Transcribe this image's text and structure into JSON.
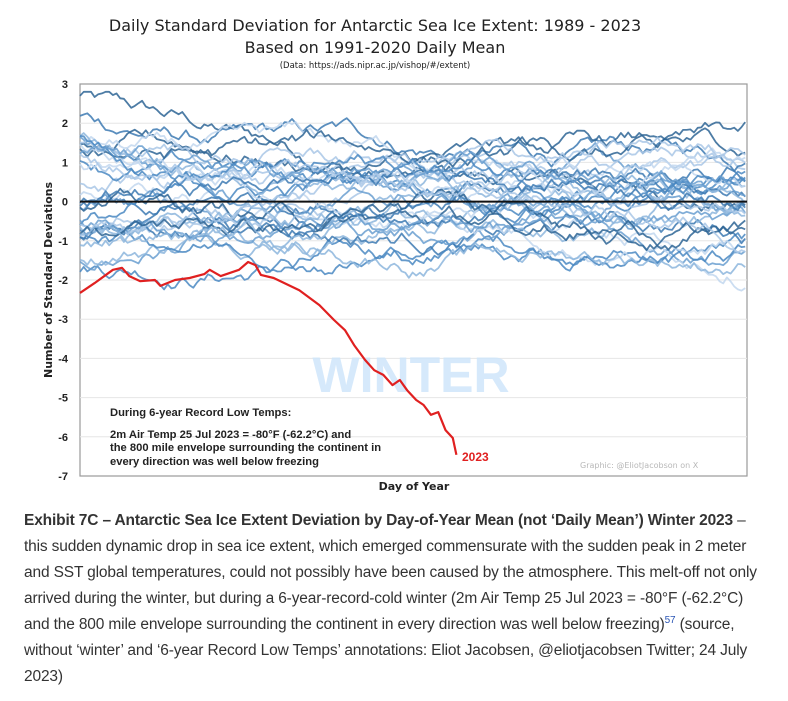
{
  "chart_data": {
    "type": "line",
    "title": "Daily Standard Deviation for Antarctic Sea Ice Extent: 1989 - 2023",
    "subtitle": "Based on 1991-2020 Daily Mean",
    "source_note": "(Data: https://ads.nipr.ac.jp/vishop/#/extent)",
    "xlabel": "Day of Year",
    "ylabel": "Number of Standard Deviations",
    "xlim": [
      1,
      366
    ],
    "ylim": [
      -7,
      3
    ],
    "yticks": [
      "3",
      "2",
      "1",
      "0",
      "-1",
      "-2",
      "-3",
      "-4",
      "-5",
      "-6",
      "-7"
    ],
    "ytick_values": [
      3,
      2,
      1,
      0,
      -1,
      -2,
      -3,
      -4,
      -5,
      -6,
      -7
    ],
    "grid": true,
    "zero_line": true,
    "highlight_series": {
      "name": "2023",
      "color": "#e02020",
      "x": [
        1,
        9,
        19,
        24,
        28,
        34,
        42,
        45,
        53,
        61,
        69,
        72,
        78,
        88,
        93,
        97,
        100,
        107,
        121,
        132,
        140,
        146,
        151,
        157,
        162,
        167,
        172,
        176,
        180,
        185,
        189,
        193,
        197,
        201,
        205,
        207
      ],
      "y": [
        -2.33,
        -2.08,
        -1.74,
        -1.69,
        -1.9,
        -2.03,
        -2.0,
        -2.15,
        -2.0,
        -1.95,
        -1.85,
        -1.74,
        -1.9,
        -1.74,
        -1.54,
        -1.62,
        -1.87,
        -1.95,
        -2.26,
        -2.64,
        -3.02,
        -3.28,
        -3.66,
        -4.04,
        -4.3,
        -4.42,
        -4.68,
        -4.55,
        -4.81,
        -5.06,
        -5.19,
        -5.44,
        -5.37,
        -5.83,
        -6.03,
        -6.46
      ]
    },
    "background_series": {
      "years": "1989 - 2022",
      "count": 34,
      "colors": [
        "#2e6595",
        "#3d7ab3",
        "#4a88c2",
        "#6a9fd0",
        "#8db6dd",
        "#a9c7e6",
        "#c2d7ee"
      ],
      "description": "Blue lines for earlier years, mostly between -2.5 and +2.8 standard deviations"
    },
    "annotations": {
      "watermark": "WINTER",
      "box_heading": "During 6-year Record Low Temps:",
      "box_lines": [
        "2m Air Temp 25 Jul 2023 = -80°F (-62.2°C) and",
        "the 800 mile envelope surrounding the continent in",
        "every direction was well below freezing"
      ],
      "series_label": "2023",
      "credit": "Graphic: @EliotJacobson on X"
    }
  },
  "caption": {
    "bold_lead": "Exhibit 7C – Antarctic Sea Ice Extent Deviation by Day-of-Year Mean (not ‘Daily Mean’) Winter 2023",
    "text_before_ref": " – this sudden dynamic drop in sea ice extent, which emerged commensurate with the sudden peak in 2 meter and SST global temperatures, could not possibly have been caused by the atmosphere. This melt-off not only arrived during the winter, but during a 6-year-record-cold winter (2m Air Temp 25 Jul 2023 = -80°F (-62.2°C) and the 800 mile envelope surrounding the continent in every direction was well below freezing)",
    "footnote_ref": "57",
    "text_after_ref": " (source, without ‘winter’ and ‘6-year Record Low Temps’ annotations: Eliot Jacobsen, @eliotjacobsen Twitter; 24 July 2023)"
  }
}
